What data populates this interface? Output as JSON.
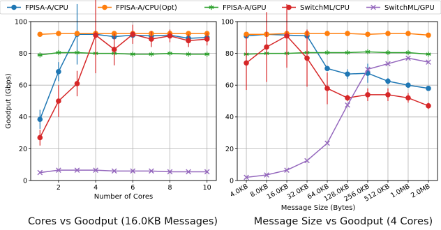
{
  "legend": {
    "location": "top",
    "entries": [
      {
        "name": "FPISA-A/CPU",
        "color": "#1f77b4",
        "marker": "o"
      },
      {
        "name": "FPISA-A/CPU(Opt)",
        "color": "#ff7f0e",
        "marker": "o"
      },
      {
        "name": "FPISA-A/GPU",
        "color": "#2ca02c",
        "marker": "*"
      },
      {
        "name": "SwitchML/CPU",
        "color": "#d62728",
        "marker": "o"
      },
      {
        "name": "SwitchML/GPU",
        "color": "#9467bd",
        "marker": "x"
      }
    ]
  },
  "chart_data": [
    {
      "type": "line",
      "caption": "Cores vs Goodput (16.0KB Messages)",
      "title": "",
      "xlabel": "Number of Cores",
      "ylabel": "Goodput (Gbps)",
      "x": [
        1,
        2,
        3,
        4,
        5,
        6,
        7,
        8,
        9,
        10
      ],
      "xticks": [
        2,
        4,
        6,
        8,
        10
      ],
      "xlim": [
        0.5,
        10.5
      ],
      "yticks": [
        0,
        20,
        40,
        60,
        80,
        100
      ],
      "ylim": [
        0,
        100
      ],
      "grid": true,
      "series": [
        {
          "name": "FPISA-A/CPU",
          "color": "#1f77b4",
          "marker": "o",
          "values": [
            38.5,
            68.5,
            92,
            92,
            90.5,
            91.5,
            91,
            91.5,
            89.5,
            90
          ],
          "err": [
            6,
            6,
            19,
            2,
            1.5,
            1,
            1,
            1,
            2,
            1.5
          ]
        },
        {
          "name": "FPISA-A/CPU(Opt)",
          "color": "#ff7f0e",
          "marker": "o",
          "values": [
            92,
            92.5,
            92.5,
            92.5,
            92.5,
            92.5,
            92.5,
            92.5,
            92.5,
            92.5
          ],
          "err": [
            0,
            0,
            0,
            0,
            0,
            0,
            0,
            0,
            0,
            0
          ]
        },
        {
          "name": "FPISA-A/GPU",
          "color": "#2ca02c",
          "marker": "*",
          "values": [
            79,
            80.5,
            80.5,
            80,
            80,
            79.5,
            79.5,
            80,
            79.5,
            79.5
          ],
          "err": [
            0,
            0,
            0,
            0,
            0,
            0,
            0,
            0,
            0,
            0
          ]
        },
        {
          "name": "SwitchML/CPU",
          "color": "#d62728",
          "marker": "o",
          "values": [
            27,
            50,
            61,
            91.5,
            82.5,
            92,
            89,
            91,
            88,
            89
          ],
          "err": [
            5,
            10,
            8,
            24,
            10,
            6,
            5,
            4,
            4,
            4
          ]
        },
        {
          "name": "SwitchML/GPU",
          "color": "#9467bd",
          "marker": "x",
          "values": [
            5,
            6.5,
            6.5,
            6.5,
            6,
            6,
            6,
            5.5,
            5.5,
            5.5
          ],
          "err": [
            0,
            0,
            0,
            0,
            0,
            0,
            0,
            0,
            0,
            0
          ]
        }
      ]
    },
    {
      "type": "line",
      "caption": "Message Size vs Goodput (4 Cores)",
      "title": "",
      "xlabel": "Message Size (Bytes)",
      "ylabel": "",
      "categories": [
        "4.0KB",
        "8.0KB",
        "16.0KB",
        "32.0KB",
        "64.0KB",
        "128.0KB",
        "256.0KB",
        "512.0KB",
        "1.0MB",
        "2.0MB"
      ],
      "yticks": [
        0,
        20,
        40,
        60,
        80,
        100
      ],
      "ylim": [
        0,
        100
      ],
      "grid": true,
      "series": [
        {
          "name": "FPISA-A/CPU",
          "color": "#1f77b4",
          "marker": "o",
          "values": [
            91,
            92,
            91.5,
            91,
            70.5,
            67,
            67.5,
            62.5,
            60,
            58
          ],
          "err": [
            1,
            1,
            1,
            1,
            1.5,
            3,
            6,
            2,
            1.5,
            1
          ]
        },
        {
          "name": "FPISA-A/CPU(Opt)",
          "color": "#ff7f0e",
          "marker": "o",
          "values": [
            92,
            92,
            92.5,
            92.5,
            92.5,
            92.5,
            92,
            92.5,
            92.5,
            91.5
          ],
          "err": [
            0,
            0,
            0,
            0,
            0,
            0,
            0,
            0,
            0,
            0
          ]
        },
        {
          "name": "FPISA-A/GPU",
          "color": "#2ca02c",
          "marker": "*",
          "values": [
            79.5,
            80,
            80,
            80.5,
            80.5,
            80.5,
            81,
            80.5,
            80.5,
            79.5
          ],
          "err": [
            0,
            0,
            0,
            0,
            0,
            0,
            0,
            0,
            0,
            0
          ]
        },
        {
          "name": "SwitchML/CPU",
          "color": "#d62728",
          "marker": "o",
          "values": [
            74,
            84,
            91,
            77,
            58,
            52,
            54,
            54,
            52,
            47
          ],
          "err": [
            17,
            22,
            20,
            18,
            10,
            2,
            4,
            4,
            3,
            2
          ]
        },
        {
          "name": "SwitchML/GPU",
          "color": "#9467bd",
          "marker": "x",
          "values": [
            2,
            3.5,
            6.5,
            12.5,
            23.5,
            47.5,
            70,
            73.5,
            77,
            74.5
          ],
          "err": [
            0,
            0,
            0,
            0,
            0,
            0,
            0,
            0,
            0,
            0
          ]
        }
      ]
    }
  ]
}
